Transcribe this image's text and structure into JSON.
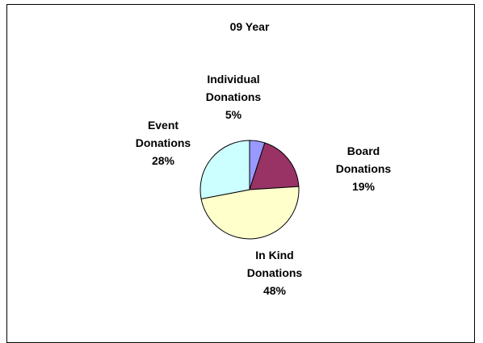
{
  "chart_data": {
    "type": "pie",
    "title": "09 Year",
    "slices": [
      {
        "label": [
          "Individual",
          "Donations"
        ],
        "percent_label": "5%",
        "value": 5,
        "color": "#9999FF"
      },
      {
        "label": [
          "Board",
          "Donations"
        ],
        "percent_label": "19%",
        "value": 19,
        "color": "#993366"
      },
      {
        "label": [
          "In Kind",
          "Donations"
        ],
        "percent_label": "48%",
        "value": 48,
        "color": "#FFFFCC"
      },
      {
        "label": [
          "Event",
          "Donations"
        ],
        "percent_label": "28%",
        "value": 28,
        "color": "#CCFFFF"
      }
    ],
    "legend": "none",
    "start_angle": "12 o'clock, clockwise"
  }
}
